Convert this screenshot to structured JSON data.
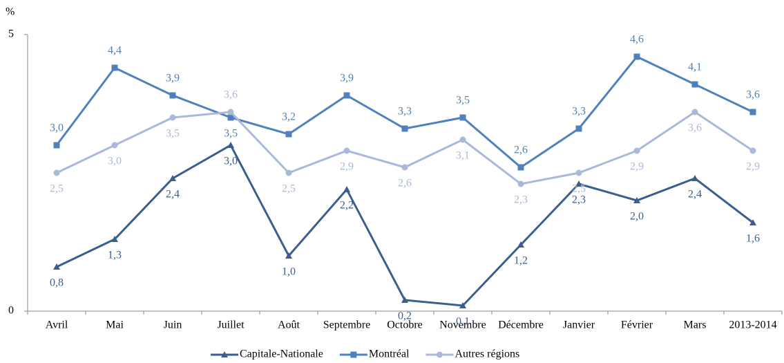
{
  "chart_data": {
    "type": "line",
    "ylabel": "%",
    "categories": [
      "Avril",
      "Mai",
      "Juin",
      "Juillet",
      "Août",
      "Septembre",
      "Octobre",
      "Novembre",
      "Décembre",
      "Janvier",
      "Février",
      "Mars",
      "2013-2014"
    ],
    "series": [
      {
        "name": "Capitale-Nationale",
        "color": "#3a5f8f",
        "marker": "triangle",
        "values": [
          0.8,
          1.3,
          2.4,
          3.0,
          1.0,
          2.2,
          0.2,
          0.1,
          1.2,
          2.3,
          2.0,
          2.4,
          1.6
        ],
        "value_labels": [
          "0,8",
          "1,3",
          "2,4",
          "3,0",
          "1,0",
          "2,2",
          "0,2",
          "0,1",
          "1,2",
          "2,3",
          "2,0",
          "2,4",
          "1,6"
        ]
      },
      {
        "name": "Montréal",
        "color": "#4f81bd",
        "marker": "square",
        "values": [
          3.0,
          4.4,
          3.9,
          3.5,
          3.2,
          3.9,
          3.3,
          3.5,
          2.6,
          3.3,
          4.6,
          4.1,
          3.6
        ],
        "value_labels": [
          "3,0",
          "4,4",
          "3,9",
          "3,5",
          "3,2",
          "3,9",
          "3,3",
          "3,5",
          "2,6",
          "3,3",
          "4,6",
          "4,1",
          "3,6"
        ]
      },
      {
        "name": "Autres régions",
        "color": "#a9b9d9",
        "marker": "circle",
        "values": [
          2.5,
          3.0,
          3.5,
          3.6,
          2.5,
          2.9,
          2.6,
          3.1,
          2.3,
          2.5,
          2.9,
          3.6,
          2.9
        ],
        "value_labels": [
          "2,5",
          "3,0",
          "3,5",
          "3,6",
          "2,5",
          "2,9",
          "2,6",
          "3,1",
          "2,3",
          "2,5",
          "2,9",
          "3,6",
          "2,9"
        ]
      }
    ],
    "ylim": [
      0,
      5
    ],
    "yticks": [
      0,
      5
    ],
    "legend": "bottom"
  }
}
